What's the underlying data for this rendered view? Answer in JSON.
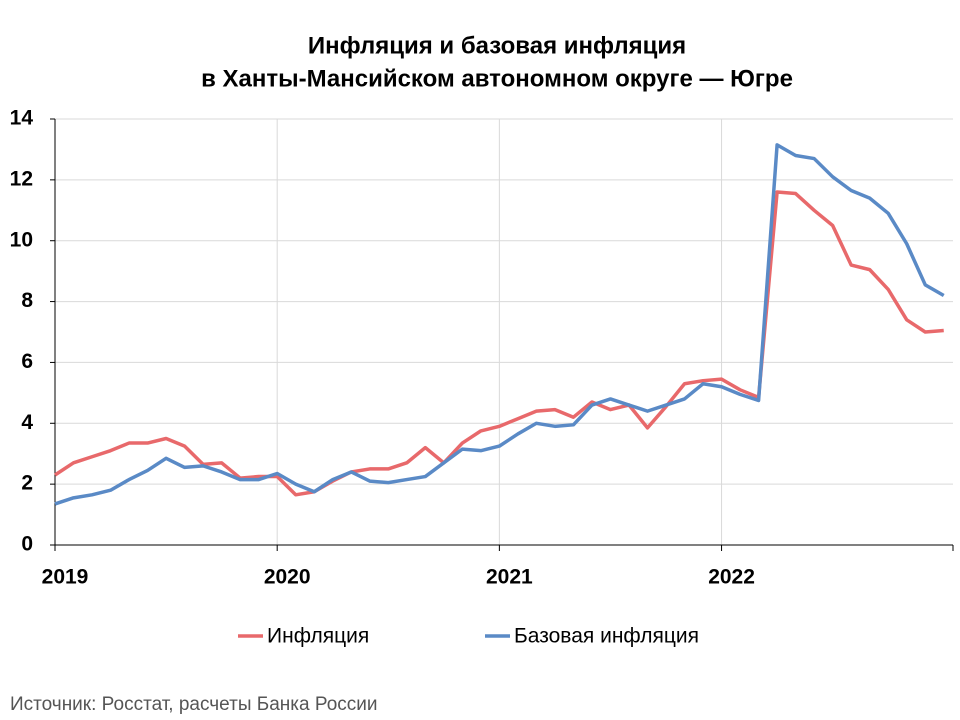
{
  "chart_data": {
    "type": "line",
    "title": [
      "Инфляция и базовая инфляция",
      "в  Ханты-Мансийском автономном округе — Югре"
    ],
    "categories": [
      "2019",
      null,
      null,
      null,
      null,
      null,
      null,
      null,
      null,
      null,
      null,
      null,
      "2020",
      null,
      null,
      null,
      null,
      null,
      null,
      null,
      null,
      null,
      null,
      null,
      "2021",
      null,
      null,
      null,
      null,
      null,
      null,
      null,
      null,
      null,
      null,
      null,
      "2022",
      null,
      null,
      null,
      null,
      null,
      null,
      null,
      null,
      null,
      null,
      null,
      null
    ],
    "series": [
      {
        "name": "Инфляция",
        "color": "#e8696b",
        "values": [
          2.3,
          2.7,
          2.9,
          3.1,
          3.35,
          3.35,
          3.5,
          3.25,
          2.65,
          2.7,
          2.2,
          2.25,
          2.25,
          1.65,
          1.75,
          2.1,
          2.4,
          2.5,
          2.5,
          2.7,
          3.2,
          2.7,
          3.35,
          3.75,
          3.9,
          4.15,
          4.4,
          4.45,
          4.2,
          4.7,
          4.45,
          4.6,
          3.85,
          4.55,
          5.3,
          5.4,
          5.45,
          5.1,
          4.85,
          11.6,
          11.55,
          11.0,
          10.5,
          9.2,
          9.05,
          8.4,
          7.4,
          7.0,
          7.05
        ]
      },
      {
        "name": "Базовая инфляция",
        "color": "#5a8ac6",
        "values": [
          1.35,
          1.55,
          1.65,
          1.8,
          2.15,
          2.45,
          2.85,
          2.55,
          2.6,
          2.4,
          2.15,
          2.15,
          2.35,
          2.0,
          1.75,
          2.15,
          2.4,
          2.1,
          2.05,
          2.15,
          2.25,
          2.7,
          3.15,
          3.1,
          3.25,
          3.65,
          4.0,
          3.9,
          3.95,
          4.6,
          4.8,
          4.6,
          4.4,
          4.6,
          4.8,
          5.3,
          5.2,
          4.95,
          4.75,
          13.15,
          12.8,
          12.7,
          12.1,
          11.65,
          11.4,
          10.9,
          9.9,
          8.55,
          8.2
        ]
      }
    ],
    "ylim": [
      0,
      14
    ],
    "yticks": [
      0,
      2,
      4,
      6,
      8,
      10,
      12,
      14
    ],
    "grid": true,
    "source": "Источник: Росстат, расчеты Банка России"
  }
}
